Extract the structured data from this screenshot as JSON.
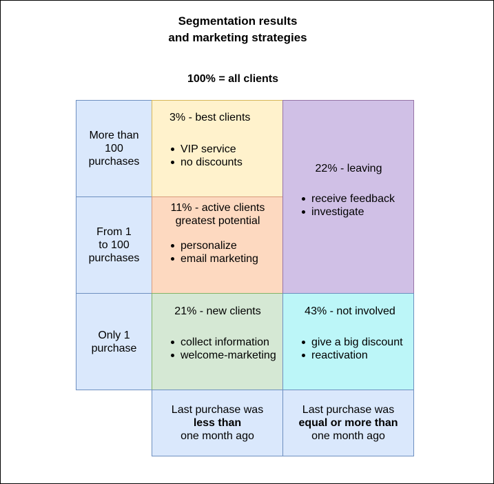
{
  "title": [
    "Segmentation results",
    "and marketing strategies"
  ],
  "subtitle": "100% = all clients",
  "rows": [
    {
      "label": [
        "More than",
        "100",
        "purchases"
      ]
    },
    {
      "label": [
        "From 1",
        "to 100",
        "purchases"
      ]
    },
    {
      "label": [
        "Only 1",
        "purchase"
      ]
    }
  ],
  "segments": {
    "best": {
      "head": [
        "3% - best clients"
      ],
      "items": [
        "VIP service",
        "no discounts"
      ],
      "color": "#fff2cc"
    },
    "active": {
      "head": [
        "11% - active clients",
        "greatest potential"
      ],
      "items": [
        "personalize",
        "email marketing"
      ],
      "color": "#fdd9c0"
    },
    "leaving": {
      "head": [
        "22% - leaving"
      ],
      "items": [
        "receive feedback",
        "investigate"
      ],
      "color": "#d0c0e6"
    },
    "new": {
      "head": [
        "21% - new clients"
      ],
      "items": [
        "collect information",
        "welcome-marketing"
      ],
      "color": "#d5e8d4"
    },
    "not_involved": {
      "head": [
        "43% - not involved"
      ],
      "items": [
        "give a big discount",
        "reactivation"
      ],
      "color": "#bcf6f8"
    }
  },
  "columns": [
    {
      "line1": "Last purchase was",
      "bold": "less than",
      "line3": "one month ago"
    },
    {
      "line1": "Last purchase was",
      "bold": "equal or more than",
      "line3": "one month ago"
    }
  ],
  "colors": {
    "label_fill": "#dae8fc",
    "border": "#6c8ebf"
  }
}
